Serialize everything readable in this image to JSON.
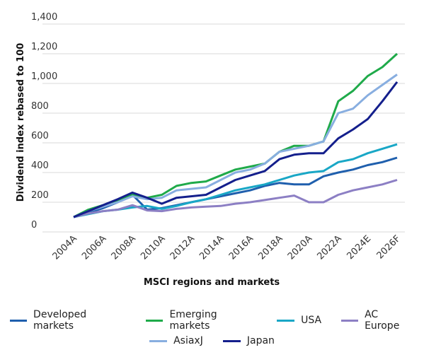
{
  "chart_data": {
    "type": "line",
    "xlabel": "MSCI regions and markets",
    "ylabel": "Dividend index rebased to 100",
    "ylim": [
      0,
      1400
    ],
    "yticks": [
      "0",
      "200",
      "400",
      "600",
      "800",
      "1,000",
      "1,200",
      "1,400"
    ],
    "x": [
      "2004",
      "2005",
      "2006",
      "2007",
      "2008",
      "2009",
      "2010",
      "2011",
      "2012",
      "2013",
      "2014",
      "2015",
      "2016",
      "2017",
      "2018",
      "2019",
      "2020",
      "2021",
      "2022",
      "2023",
      "2024",
      "2025",
      "2026"
    ],
    "xtick_labels": [
      "2004A",
      "2006A",
      "2008A",
      "2010A",
      "2012A",
      "2014A",
      "2016A",
      "2018A",
      "2020A",
      "2022A",
      "2024E",
      "2026F"
    ],
    "grid": "horizontal",
    "legend_position": "bottom",
    "series": [
      {
        "name": "Developed markets",
        "color": "#1f5fad",
        "values": [
          100,
          130,
          160,
          200,
          250,
          150,
          160,
          180,
          200,
          220,
          240,
          260,
          280,
          310,
          330,
          320,
          320,
          375,
          400,
          420,
          450,
          470,
          500
        ]
      },
      {
        "name": "Emerging markets",
        "color": "#1faa4a",
        "values": [
          100,
          150,
          180,
          210,
          250,
          230,
          250,
          310,
          330,
          340,
          380,
          420,
          440,
          460,
          540,
          580,
          580,
          610,
          880,
          950,
          1050,
          1110,
          1200
        ]
      },
      {
        "name": "USA",
        "color": "#19a7c6",
        "values": [
          100,
          120,
          140,
          150,
          165,
          175,
          155,
          175,
          200,
          220,
          250,
          280,
          300,
          320,
          350,
          380,
          400,
          410,
          470,
          490,
          530,
          560,
          590
        ]
      },
      {
        "name": "AC Europe",
        "color": "#8c7fc4",
        "values": [
          100,
          125,
          140,
          150,
          180,
          145,
          140,
          155,
          165,
          170,
          175,
          190,
          200,
          215,
          230,
          245,
          200,
          200,
          250,
          280,
          300,
          320,
          350
        ]
      },
      {
        "name": "AsiaxJ",
        "color": "#88aee0",
        "values": [
          100,
          140,
          170,
          200,
          240,
          220,
          230,
          280,
          290,
          300,
          350,
          400,
          420,
          460,
          540,
          560,
          580,
          610,
          800,
          830,
          920,
          990,
          1060
        ]
      },
      {
        "name": "Japan",
        "color": "#141f8c",
        "values": [
          100,
          140,
          180,
          220,
          265,
          230,
          190,
          230,
          240,
          250,
          300,
          350,
          380,
          410,
          490,
          520,
          530,
          530,
          630,
          690,
          760,
          880,
          1010
        ]
      }
    ]
  }
}
